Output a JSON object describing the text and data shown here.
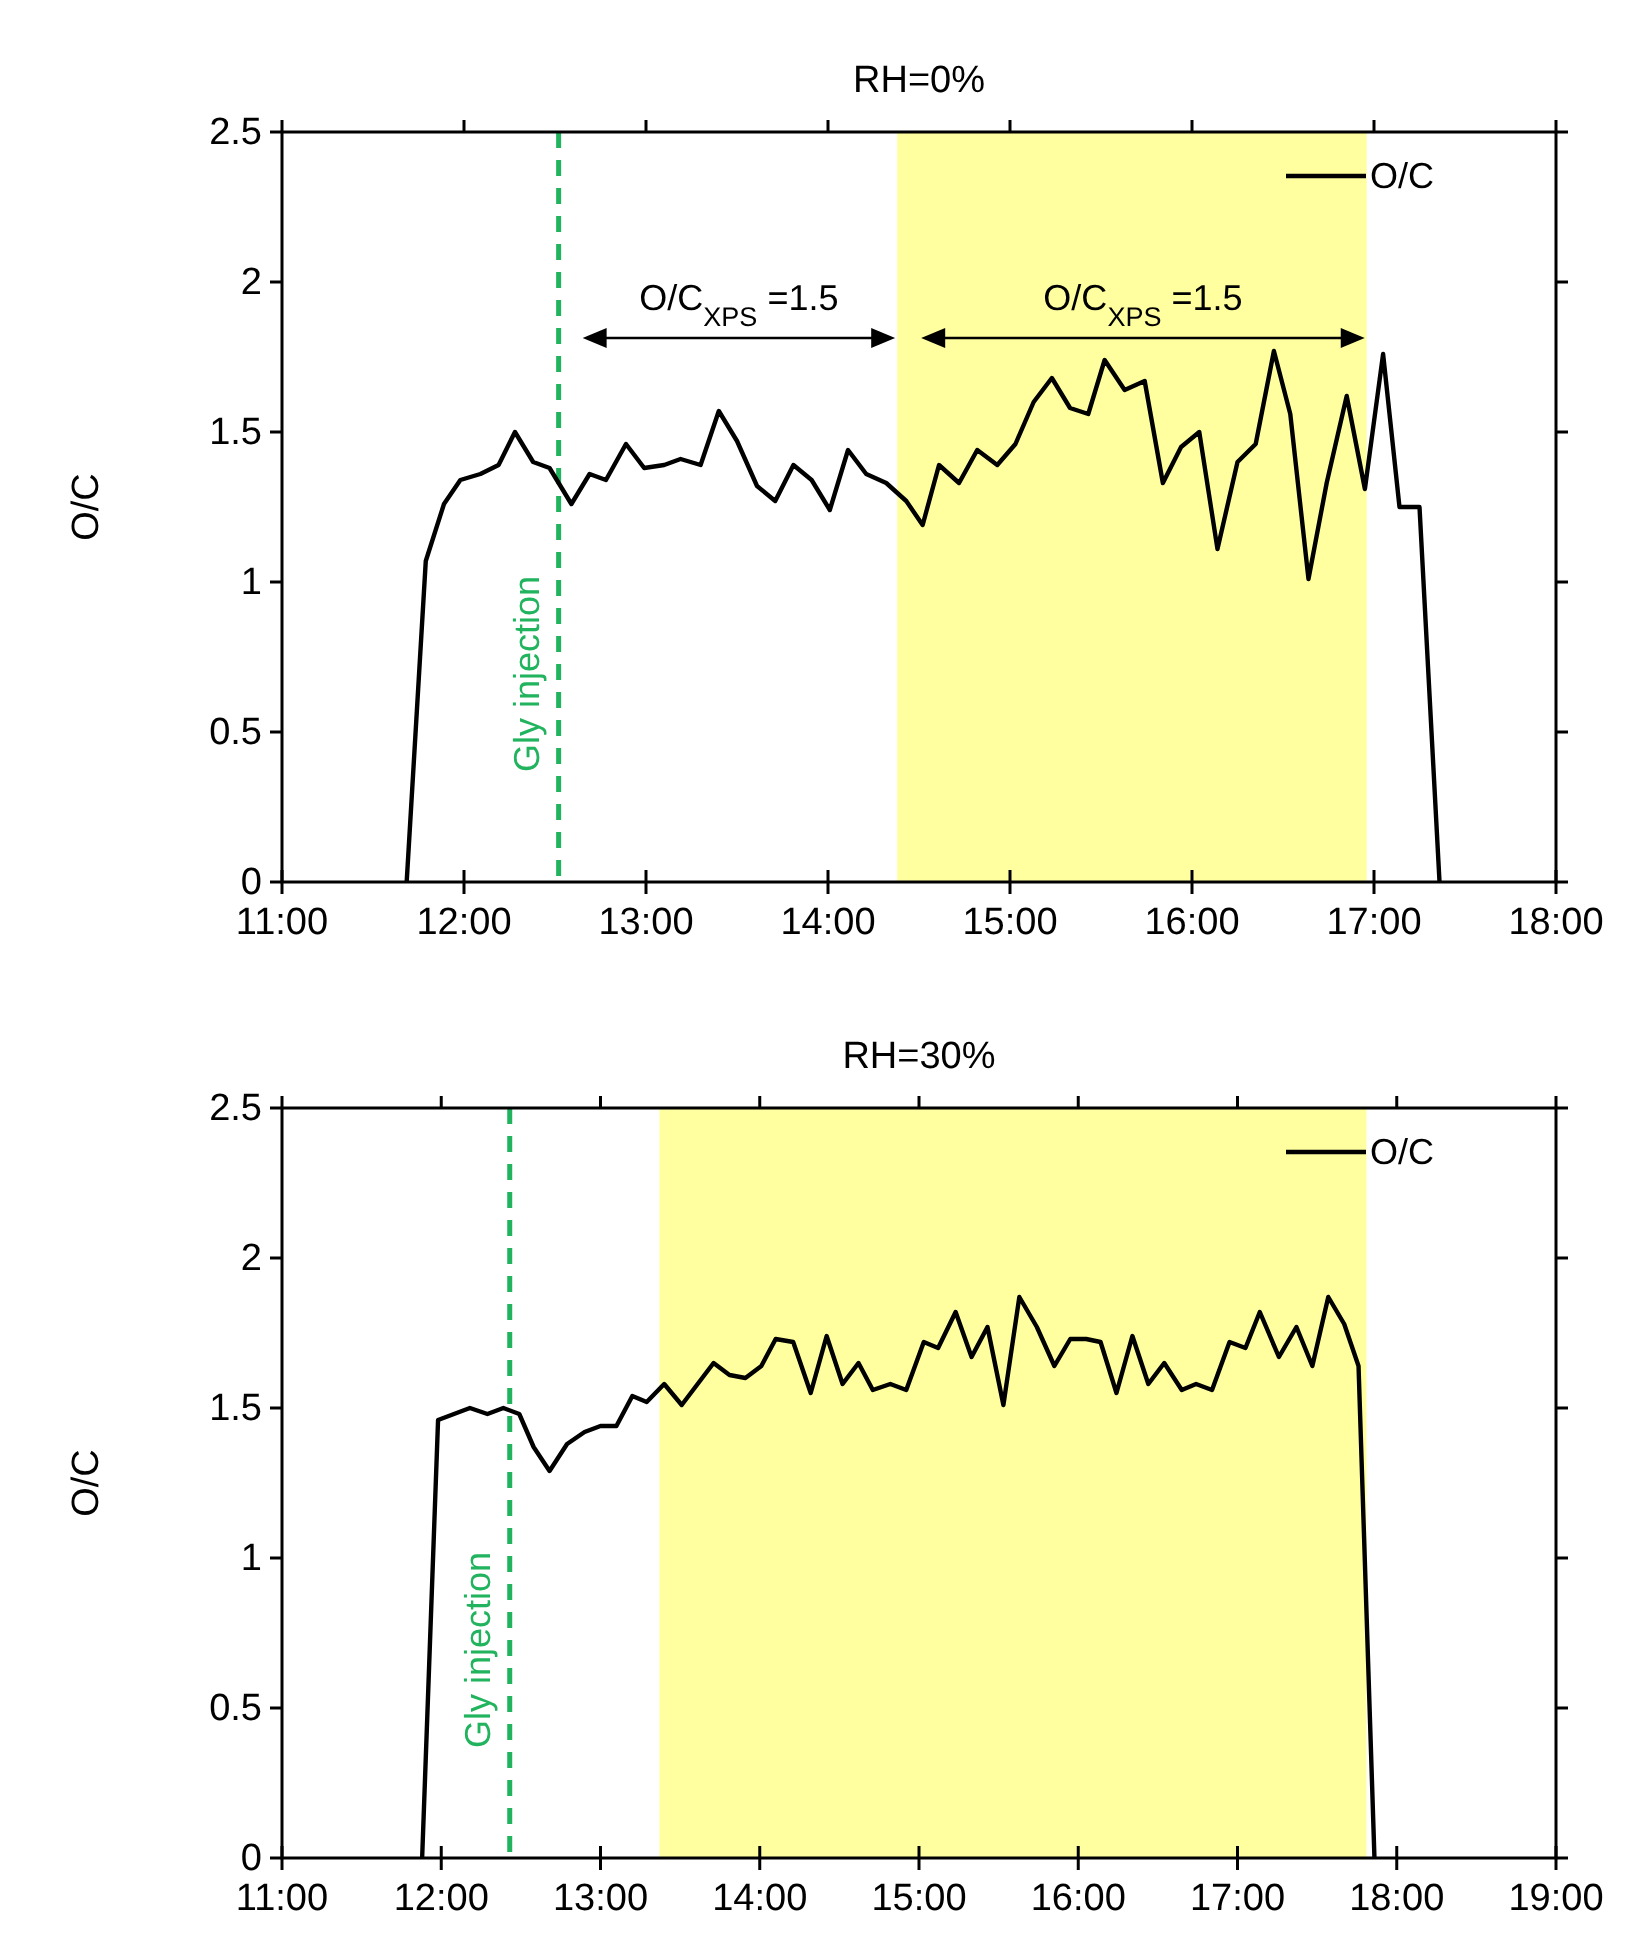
{
  "chart_data": [
    {
      "type": "line",
      "title": "RH=0%",
      "ylabel": "O/C",
      "xlim": [
        11,
        18
      ],
      "xticks": [
        {
          "value": 11,
          "label": "11:00"
        },
        {
          "value": 12,
          "label": "12:00"
        },
        {
          "value": 13,
          "label": "13:00"
        },
        {
          "value": 14,
          "label": "14:00"
        },
        {
          "value": 15,
          "label": "15:00"
        },
        {
          "value": 16,
          "label": "16:00"
        },
        {
          "value": 17,
          "label": "17:00"
        },
        {
          "value": 18,
          "label": "18:00"
        }
      ],
      "ylim": [
        0,
        2.5
      ],
      "yticks": [
        0,
        0.5,
        1,
        1.5,
        2,
        2.5
      ],
      "grid": false,
      "legend": "top right",
      "marker": "none",
      "line_style": "solid",
      "series": [
        {
          "name": "O/C",
          "color": "#000000",
          "x": [
            11.685,
            11.79,
            11.89,
            11.98,
            12.09,
            12.19,
            12.28,
            12.38,
            12.47,
            12.59,
            12.69,
            12.78,
            12.89,
            12.99,
            13.1,
            13.19,
            13.3,
            13.4,
            13.5,
            13.61,
            13.71,
            13.81,
            13.91,
            14.01,
            14.11,
            14.21,
            14.32,
            14.43,
            14.52,
            14.61,
            14.72,
            14.82,
            14.93,
            15.03,
            15.13,
            15.23,
            15.33,
            15.43,
            15.52,
            15.63,
            15.74,
            15.84,
            15.94,
            16.04,
            16.14,
            16.25,
            16.35,
            16.45,
            16.54,
            16.64,
            16.74,
            16.85,
            16.95,
            17.05,
            17.14,
            17.25,
            17.36
          ],
          "values": [
            0,
            1.07,
            1.26,
            1.34,
            1.36,
            1.39,
            1.5,
            1.4,
            1.38,
            1.26,
            1.36,
            1.34,
            1.46,
            1.38,
            1.39,
            1.41,
            1.39,
            1.57,
            1.47,
            1.32,
            1.27,
            1.39,
            1.34,
            1.24,
            1.44,
            1.36,
            1.33,
            1.27,
            1.19,
            1.39,
            1.33,
            1.44,
            1.39,
            1.46,
            1.6,
            1.68,
            1.58,
            1.56,
            1.74,
            1.64,
            1.67,
            1.33,
            1.45,
            1.5,
            1.11,
            1.4,
            1.46,
            1.77,
            1.56,
            1.01,
            1.33,
            1.62,
            1.31,
            1.76,
            1.25,
            1.25,
            0
          ]
        }
      ],
      "ref_lines": [
        {
          "axis": "x",
          "value": 12.52,
          "label": "Gly injection",
          "color": "#22b35e",
          "line_style": "dashed"
        }
      ],
      "bands": [
        {
          "axis": "x",
          "from": 14.38,
          "to": 16.96,
          "color": "#ffffa0"
        }
      ],
      "annotations": [
        "O/C$_{XPS}$ =1.5",
        "O/C$_{XPS}$ =1.5"
      ]
    },
    {
      "type": "line",
      "title": "RH=30%",
      "ylabel": "O/C",
      "xlim": [
        11,
        19
      ],
      "xticks": [
        {
          "value": 11,
          "label": "11:00"
        },
        {
          "value": 12,
          "label": "12:00"
        },
        {
          "value": 13,
          "label": "13:00"
        },
        {
          "value": 14,
          "label": "14:00"
        },
        {
          "value": 15,
          "label": "15:00"
        },
        {
          "value": 16,
          "label": "16:00"
        },
        {
          "value": 17,
          "label": "17:00"
        },
        {
          "value": 18,
          "label": "18:00"
        },
        {
          "value": 19,
          "label": "19:00"
        }
      ],
      "ylim": [
        0,
        2.5
      ],
      "yticks": [
        0,
        0.5,
        1,
        1.5,
        2,
        2.5
      ],
      "grid": false,
      "legend": "top right",
      "marker": "none",
      "line_style": "solid",
      "series": [
        {
          "name": "O/C",
          "color": "#000000",
          "x": [
            11.88,
            11.98,
            12.08,
            12.18,
            12.29,
            12.39,
            12.49,
            12.58,
            12.68,
            12.79,
            12.9,
            13.0,
            13.1,
            13.2,
            13.29,
            13.4,
            13.51,
            13.61,
            13.71,
            13.81,
            13.91,
            14.01,
            14.1,
            14.21,
            14.32,
            14.42,
            14.52,
            14.62,
            14.71,
            14.82,
            14.92,
            15.03,
            15.12,
            15.23,
            15.33,
            15.43,
            15.53,
            15.63,
            15.74,
            15.85,
            15.95,
            16.05,
            16.14,
            16.24,
            16.34,
            16.44,
            16.54,
            16.65,
            16.74,
            16.84,
            16.95,
            17.05,
            17.14,
            17.26,
            17.37,
            17.47,
            17.57,
            17.67,
            17.76,
            17.86
          ],
          "values": [
            0,
            1.46,
            1.48,
            1.5,
            1.48,
            1.5,
            1.48,
            1.37,
            1.29,
            1.38,
            1.42,
            1.44,
            1.44,
            1.54,
            1.52,
            1.58,
            1.51,
            1.58,
            1.65,
            1.61,
            1.6,
            1.64,
            1.73,
            1.72,
            1.55,
            1.74,
            1.58,
            1.65,
            1.56,
            1.58,
            1.56,
            1.72,
            1.7,
            1.82,
            1.67,
            1.77,
            1.51,
            1.87,
            1.77,
            1.64,
            1.73,
            1.73,
            1.72,
            1.55,
            1.74,
            1.58,
            1.65,
            1.56,
            1.58,
            1.56,
            1.72,
            1.7,
            1.82,
            1.67,
            1.77,
            1.64,
            1.87,
            1.78,
            1.64,
            0
          ]
        }
      ],
      "ref_lines": [
        {
          "axis": "x",
          "value": 12.43,
          "label": "Gly injection",
          "color": "#22b35e",
          "line_style": "dashed"
        }
      ],
      "bands": [
        {
          "axis": "x",
          "from": 13.37,
          "to": 17.81,
          "color": "#ffffa0"
        }
      ]
    }
  ]
}
